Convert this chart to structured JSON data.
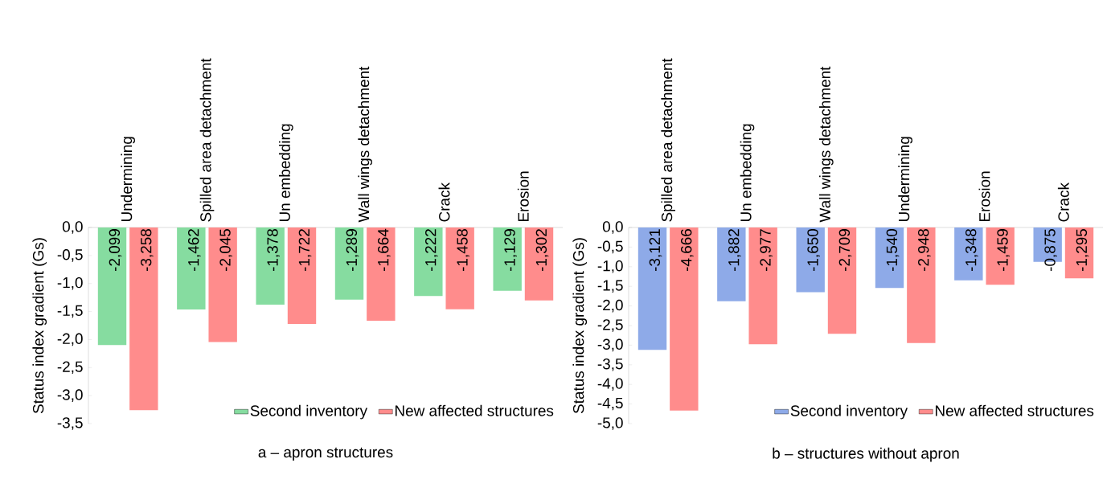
{
  "chart_data": [
    {
      "type": "bar",
      "title": "a – apron structures",
      "ylabel": "Status index gradient (Gs)",
      "categories": [
        "Undermining",
        "Spilled area detachment",
        "Un embedding",
        "Wall wings detachment",
        "Crack",
        "Erosion"
      ],
      "series": [
        {
          "name": "Second inventory",
          "color": "#86dca0",
          "values": [
            -2.099,
            -1.462,
            -1.378,
            -1.289,
            -1.222,
            -1.129
          ],
          "value_labels": [
            "-2,099",
            "-1,462",
            "-1,378",
            "-1,289",
            "-1,222",
            "-1,129"
          ]
        },
        {
          "name": "New affected structures",
          "color": "#ff8c8c",
          "values": [
            -3.258,
            -2.045,
            -1.722,
            -1.664,
            -1.458,
            -1.302
          ],
          "value_labels": [
            "-3,258",
            "-2,045",
            "-1,722",
            "-1,664",
            "-1,458",
            "-1,302"
          ]
        }
      ],
      "ylim": [
        -3.5,
        0
      ],
      "yticks": [
        {
          "value": 0,
          "label": "0,0"
        },
        {
          "value": -0.5,
          "label": "-0,5"
        },
        {
          "value": -1,
          "label": "-1,0"
        },
        {
          "value": -1.5,
          "label": "-1,5"
        },
        {
          "value": -2,
          "label": "-2,0"
        },
        {
          "value": -2.5,
          "label": "-2,5"
        },
        {
          "value": -3,
          "label": "-3,0"
        },
        {
          "value": -3.5,
          "label": "-3,5"
        }
      ],
      "legend": "bottom right"
    },
    {
      "type": "bar",
      "title": "b – structures without apron",
      "ylabel": "Status index gradient (Gs)",
      "categories": [
        "Spilled area detachment",
        "Un embedding",
        "Wall wings detachment",
        "Undermining",
        "Erosion",
        "Crack"
      ],
      "series": [
        {
          "name": "Second inventory",
          "color": "#8eaae8",
          "values": [
            -3.121,
            -1.882,
            -1.65,
            -1.54,
            -1.348,
            -0.875
          ],
          "value_labels": [
            "-3,121",
            "-1,882",
            "-1,650",
            "-1,540",
            "-1,348",
            "-0,875"
          ]
        },
        {
          "name": "New affected structures",
          "color": "#ff8c8c",
          "values": [
            -4.666,
            -2.977,
            -2.709,
            -2.948,
            -1.459,
            -1.295
          ],
          "value_labels": [
            "-4,666",
            "-2,977",
            "-2,709",
            "-2,948",
            "-1,459",
            "-1,295"
          ]
        }
      ],
      "ylim": [
        -5,
        0
      ],
      "yticks": [
        {
          "value": 0,
          "label": "0,0"
        },
        {
          "value": -0.5,
          "label": "-0,5"
        },
        {
          "value": -1,
          "label": "-1,0"
        },
        {
          "value": -1.5,
          "label": "-1,5"
        },
        {
          "value": -2,
          "label": "-2,0"
        },
        {
          "value": -2.5,
          "label": "-2,5"
        },
        {
          "value": -3,
          "label": "-3,0"
        },
        {
          "value": -3.5,
          "label": "-3,5"
        },
        {
          "value": -4,
          "label": "-4,0"
        },
        {
          "value": -4.5,
          "label": "-4,5"
        },
        {
          "value": -5,
          "label": "-5,0"
        }
      ],
      "legend": "bottom right"
    }
  ]
}
